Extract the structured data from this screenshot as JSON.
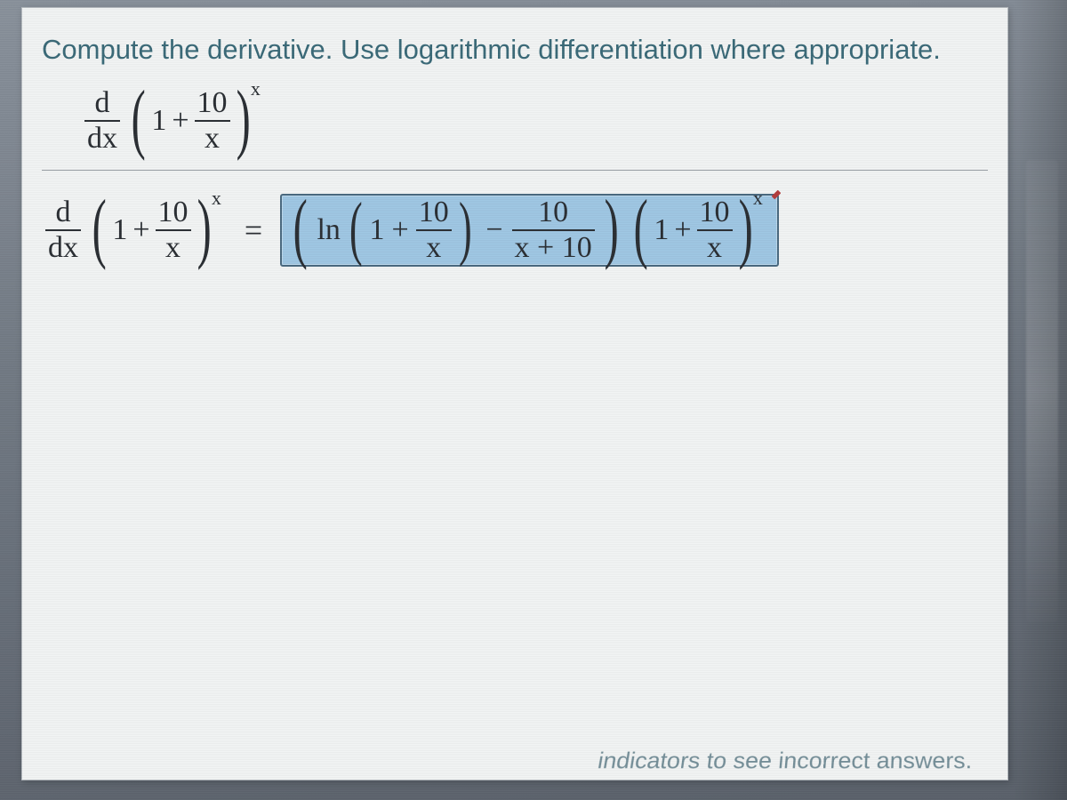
{
  "instruction": "Compute the derivative. Use logarithmic differentiation where appropriate.",
  "deriv": {
    "d": "d",
    "dx": "dx"
  },
  "expr": {
    "one": "1",
    "plus": "+",
    "minus": "−",
    "ten": "10",
    "x": "x",
    "sup_x": "x",
    "ln": "ln",
    "x_plus_10": "x + 10",
    "eq": "="
  },
  "footer": "indicators to see incorrect answers.",
  "colors": {
    "panel_bg": "#f2f4f4",
    "instruction_color": "#3a6a78",
    "math_color": "#2a2e33",
    "answer_bg": "#9fc7e4",
    "answer_border": "#4a6a80"
  }
}
